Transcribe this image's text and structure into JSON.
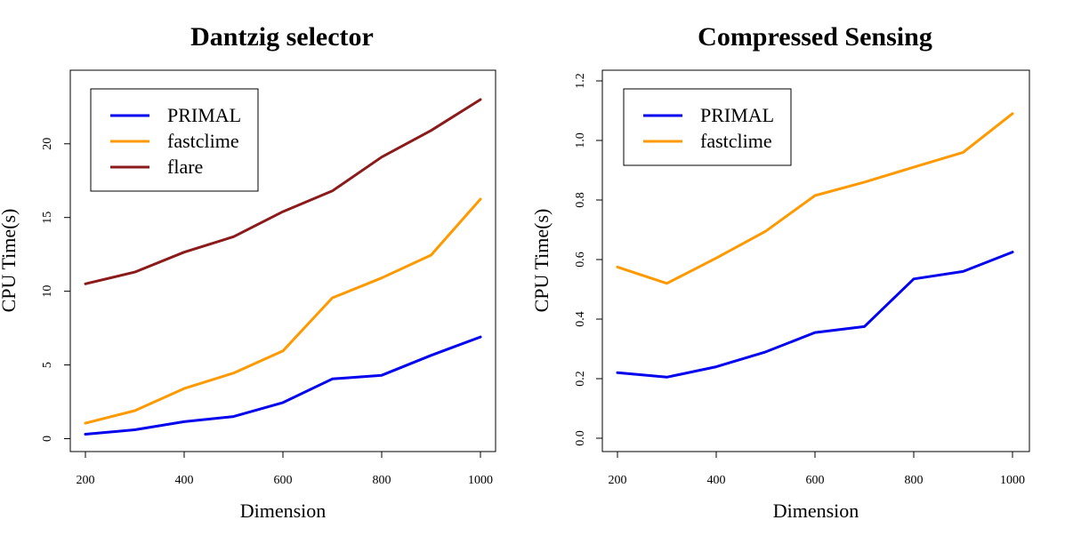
{
  "chart_data": [
    {
      "type": "line",
      "title": "Dantzig selector",
      "xlabel": "Dimension",
      "ylabel": "CPU Time(s)",
      "x": [
        200,
        300,
        400,
        500,
        600,
        700,
        800,
        900,
        1000
      ],
      "xlim": [
        200,
        1000
      ],
      "ylim": [
        0,
        23
      ],
      "xticks": [
        200,
        400,
        600,
        800,
        1000
      ],
      "yticks": [
        0,
        5,
        10,
        15,
        20
      ],
      "xtick_labels": [
        "200",
        "400",
        "600",
        "800",
        "1000"
      ],
      "ytick_labels": [
        "0",
        "5",
        "10",
        "15",
        "20"
      ],
      "grid": false,
      "legend_position": "top-left",
      "series": [
        {
          "name": "PRIMAL",
          "color": "#0000ee",
          "values": [
            0.3,
            0.6,
            1.15,
            1.5,
            2.45,
            4.05,
            4.3,
            5.65,
            6.9
          ]
        },
        {
          "name": "fastclime",
          "color": "#ff9900",
          "values": [
            1.05,
            1.9,
            3.4,
            4.45,
            5.95,
            9.55,
            10.9,
            12.45,
            16.25
          ]
        },
        {
          "name": "flare",
          "color": "#8b1a1a",
          "values": [
            10.5,
            11.3,
            12.65,
            13.7,
            15.4,
            16.8,
            19.1,
            20.9,
            23.0
          ]
        }
      ]
    },
    {
      "type": "line",
      "title": "Compressed Sensing",
      "xlabel": "Dimension",
      "ylabel": "CPU Time(s)",
      "x": [
        200,
        300,
        400,
        500,
        600,
        700,
        800,
        900,
        1000
      ],
      "xlim": [
        200,
        1000
      ],
      "ylim": [
        0,
        1.2
      ],
      "xticks": [
        200,
        400,
        600,
        800,
        1000
      ],
      "yticks": [
        0,
        0.2,
        0.4,
        0.6,
        0.8,
        1.0,
        1.2
      ],
      "xtick_labels": [
        "200",
        "400",
        "600",
        "800",
        "1000"
      ],
      "ytick_labels": [
        "0.0",
        "0.2",
        "0.4",
        "0.6",
        "0.8",
        "1.0",
        "1.2"
      ],
      "grid": false,
      "legend_position": "top-left",
      "series": [
        {
          "name": "PRIMAL",
          "color": "#0000ee",
          "values": [
            0.22,
            0.205,
            0.24,
            0.29,
            0.355,
            0.375,
            0.535,
            0.56,
            0.625
          ]
        },
        {
          "name": "fastclime",
          "color": "#ff9900",
          "values": [
            0.575,
            0.52,
            0.605,
            0.695,
            0.815,
            0.86,
            0.91,
            0.96,
            1.09
          ]
        }
      ]
    }
  ]
}
